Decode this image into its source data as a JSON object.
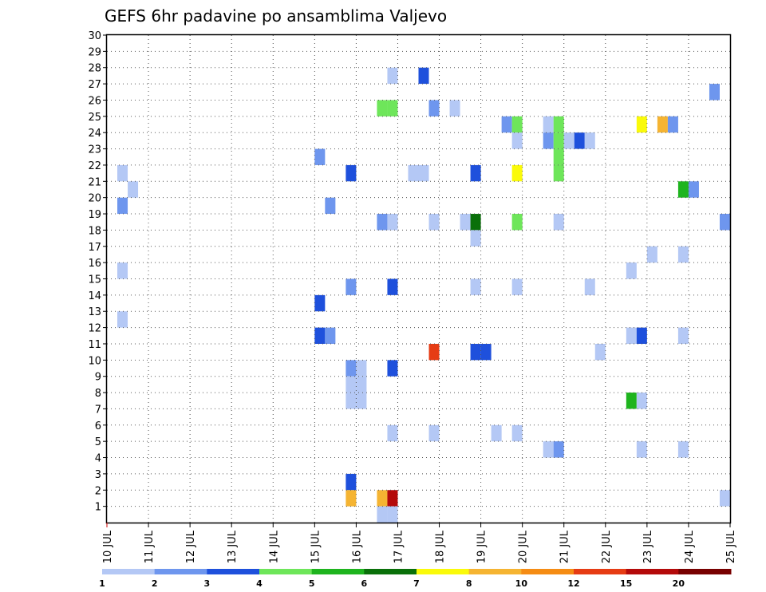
{
  "chart_data": {
    "type": "heatmap",
    "title": "GEFS 6hr padavine po ansamblima Valjevo",
    "x_labels": [
      "10 JUL",
      "11 JUL",
      "12 JUL",
      "13 JUL",
      "14 JUL",
      "15 JUL",
      "16 JUL",
      "17 JUL",
      "18 JUL",
      "19 JUL",
      "20 JUL",
      "21 JUL",
      "22 JUL",
      "23 JUL",
      "24 JUL",
      "25 JUL"
    ],
    "x_range": [
      0,
      15
    ],
    "y_labels": [
      "1",
      "2",
      "3",
      "4",
      "5",
      "6",
      "7",
      "8",
      "9",
      "10",
      "11",
      "12",
      "13",
      "14",
      "15",
      "16",
      "17",
      "18",
      "19",
      "20",
      "21",
      "22",
      "23",
      "24",
      "25",
      "26",
      "27",
      "28",
      "29",
      "30"
    ],
    "y_range": [
      0,
      30
    ],
    "grid": true,
    "legend": {
      "placement": "bottom",
      "colors": [
        "#b4c8f5",
        "#6e96ee",
        "#1e50dc",
        "#6ee65a",
        "#1eb41e",
        "#0a700a",
        "#fafa0a",
        "#f5b432",
        "#f58c14",
        "#e63c14",
        "#b40a0a",
        "#780000"
      ],
      "labels": [
        "1",
        "2",
        "3",
        "4",
        "5",
        "6",
        "7",
        "8",
        "10",
        "12",
        "15",
        "20"
      ]
    },
    "cells": [
      {
        "x": 0.25,
        "y": 20,
        "c": 2
      },
      {
        "x": 0.25,
        "y": 22,
        "c": 1
      },
      {
        "x": 0.5,
        "y": 21,
        "c": 1
      },
      {
        "x": 0.25,
        "y": 16,
        "c": 1
      },
      {
        "x": 0.25,
        "y": 13,
        "c": 1
      },
      {
        "x": 5.0,
        "y": 23,
        "c": 2
      },
      {
        "x": 5.25,
        "y": 20,
        "c": 2
      },
      {
        "x": 5.0,
        "y": 14,
        "c": 3
      },
      {
        "x": 5.0,
        "y": 12,
        "c": 3
      },
      {
        "x": 5.25,
        "y": 12,
        "c": 2
      },
      {
        "x": 5.75,
        "y": 22,
        "c": 3
      },
      {
        "x": 5.75,
        "y": 15,
        "c": 2
      },
      {
        "x": 5.75,
        "y": 10,
        "c": 2
      },
      {
        "x": 6.0,
        "y": 10,
        "c": 1
      },
      {
        "x": 5.75,
        "y": 9,
        "c": 1
      },
      {
        "x": 6.0,
        "y": 9,
        "c": 1
      },
      {
        "x": 5.75,
        "y": 8,
        "c": 1
      },
      {
        "x": 6.0,
        "y": 8,
        "c": 1
      },
      {
        "x": 5.75,
        "y": 3,
        "c": 3
      },
      {
        "x": 5.75,
        "y": 2,
        "c": 8
      },
      {
        "x": 6.75,
        "y": 28,
        "c": 1
      },
      {
        "x": 6.5,
        "y": 26,
        "c": 4
      },
      {
        "x": 6.75,
        "y": 26,
        "c": 4
      },
      {
        "x": 6.5,
        "y": 19,
        "c": 2
      },
      {
        "x": 6.75,
        "y": 19,
        "c": 1
      },
      {
        "x": 6.75,
        "y": 15,
        "c": 3
      },
      {
        "x": 6.75,
        "y": 10,
        "c": 3
      },
      {
        "x": 6.75,
        "y": 6,
        "c": 1
      },
      {
        "x": 6.5,
        "y": 2,
        "c": 8
      },
      {
        "x": 6.75,
        "y": 2,
        "c": 11
      },
      {
        "x": 6.5,
        "y": 1,
        "c": 1
      },
      {
        "x": 6.75,
        "y": 1,
        "c": 1
      },
      {
        "x": 7.5,
        "y": 28,
        "c": 3
      },
      {
        "x": 7.25,
        "y": 22,
        "c": 1
      },
      {
        "x": 7.5,
        "y": 22,
        "c": 1
      },
      {
        "x": 7.75,
        "y": 26,
        "c": 2
      },
      {
        "x": 8.25,
        "y": 26,
        "c": 1
      },
      {
        "x": 7.75,
        "y": 19,
        "c": 1
      },
      {
        "x": 7.75,
        "y": 11,
        "c": 10
      },
      {
        "x": 7.75,
        "y": 6,
        "c": 1
      },
      {
        "x": 8.75,
        "y": 22,
        "c": 3
      },
      {
        "x": 8.5,
        "y": 19,
        "c": 1
      },
      {
        "x": 8.75,
        "y": 19,
        "c": 6
      },
      {
        "x": 8.75,
        "y": 18,
        "c": 1
      },
      {
        "x": 8.75,
        "y": 15,
        "c": 1
      },
      {
        "x": 8.75,
        "y": 11,
        "c": 3
      },
      {
        "x": 9.0,
        "y": 11,
        "c": 3
      },
      {
        "x": 9.25,
        "y": 6,
        "c": 1
      },
      {
        "x": 9.5,
        "y": 25,
        "c": 2
      },
      {
        "x": 9.75,
        "y": 25,
        "c": 4
      },
      {
        "x": 9.75,
        "y": 24,
        "c": 1
      },
      {
        "x": 9.75,
        "y": 22,
        "c": 7
      },
      {
        "x": 9.75,
        "y": 19,
        "c": 4
      },
      {
        "x": 9.75,
        "y": 15,
        "c": 1
      },
      {
        "x": 9.75,
        "y": 6,
        "c": 1
      },
      {
        "x": 10.5,
        "y": 25,
        "c": 1
      },
      {
        "x": 10.75,
        "y": 25,
        "c": 4
      },
      {
        "x": 10.5,
        "y": 24,
        "c": 2
      },
      {
        "x": 10.75,
        "y": 24,
        "c": 4
      },
      {
        "x": 11.0,
        "y": 24,
        "c": 1
      },
      {
        "x": 11.25,
        "y": 24,
        "c": 3
      },
      {
        "x": 11.5,
        "y": 24,
        "c": 1
      },
      {
        "x": 10.75,
        "y": 23,
        "c": 4
      },
      {
        "x": 10.75,
        "y": 22,
        "c": 4
      },
      {
        "x": 10.75,
        "y": 19,
        "c": 1
      },
      {
        "x": 11.5,
        "y": 15,
        "c": 1
      },
      {
        "x": 10.5,
        "y": 5,
        "c": 1
      },
      {
        "x": 10.75,
        "y": 5,
        "c": 2
      },
      {
        "x": 11.75,
        "y": 11,
        "c": 1
      },
      {
        "x": 12.75,
        "y": 25,
        "c": 7
      },
      {
        "x": 13.25,
        "y": 25,
        "c": 8
      },
      {
        "x": 13.5,
        "y": 25,
        "c": 2
      },
      {
        "x": 13.75,
        "y": 21,
        "c": 5
      },
      {
        "x": 14.0,
        "y": 21,
        "c": 2
      },
      {
        "x": 13.0,
        "y": 17,
        "c": 1
      },
      {
        "x": 13.75,
        "y": 17,
        "c": 1
      },
      {
        "x": 12.5,
        "y": 16,
        "c": 1
      },
      {
        "x": 12.5,
        "y": 12,
        "c": 1
      },
      {
        "x": 12.75,
        "y": 12,
        "c": 3
      },
      {
        "x": 13.75,
        "y": 12,
        "c": 1
      },
      {
        "x": 12.5,
        "y": 8,
        "c": 5
      },
      {
        "x": 12.75,
        "y": 8,
        "c": 1
      },
      {
        "x": 12.75,
        "y": 5,
        "c": 1
      },
      {
        "x": 13.75,
        "y": 5,
        "c": 1
      },
      {
        "x": 14.5,
        "y": 27,
        "c": 2
      },
      {
        "x": 14.75,
        "y": 19,
        "c": 2
      },
      {
        "x": 14.75,
        "y": 2,
        "c": 1
      }
    ]
  }
}
